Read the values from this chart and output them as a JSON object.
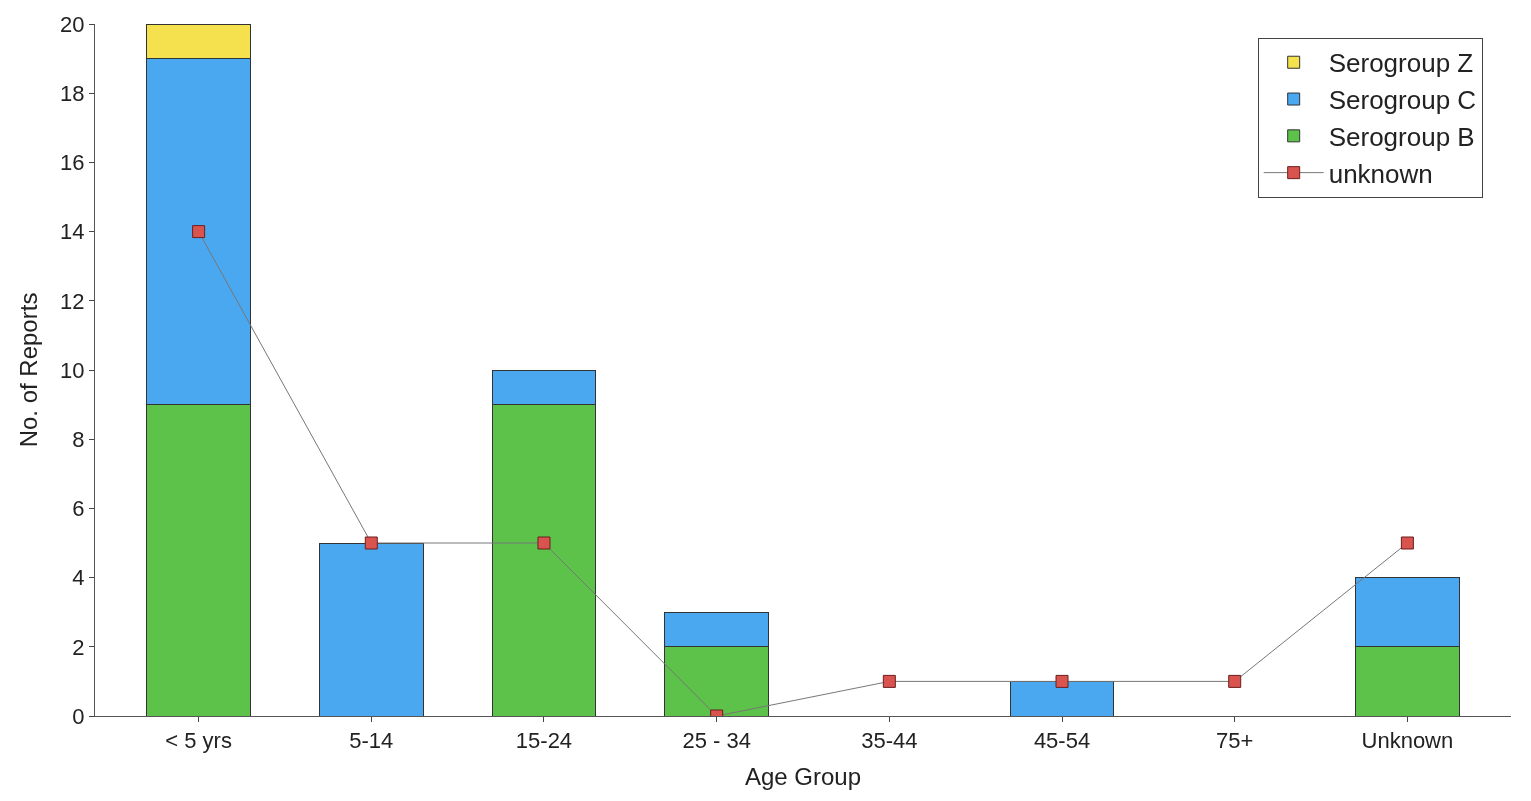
{
  "chart_data": {
    "type": "bar",
    "stacked": true,
    "xlabel": "Age Group",
    "ylabel": "No. of Reports",
    "categories": [
      "< 5 yrs",
      "5-14",
      "15-24",
      "25 - 34",
      "35-44",
      "45-54",
      "75+",
      "Unknown"
    ],
    "series": [
      {
        "name": "Serogroup B",
        "color": "#5cc24a",
        "values": [
          9,
          0,
          9,
          2,
          0,
          0,
          0,
          2
        ]
      },
      {
        "name": "Serogroup C",
        "color": "#4aa8f0",
        "values": [
          10,
          5,
          1,
          1,
          0,
          1,
          0,
          2
        ]
      },
      {
        "name": "Serogroup Z",
        "color": "#f5e04e",
        "values": [
          1,
          0,
          0,
          0,
          0,
          0,
          0,
          0
        ]
      },
      {
        "name": "unknown",
        "type": "line",
        "color": "#d9534f",
        "marker": "square",
        "values": [
          14,
          5,
          5,
          0,
          1,
          1,
          1,
          5
        ]
      }
    ],
    "ylim": [
      0,
      20
    ],
    "yticks": [
      0,
      2,
      4,
      6,
      8,
      10,
      12,
      14,
      16,
      18,
      20
    ],
    "legend": "top right"
  }
}
